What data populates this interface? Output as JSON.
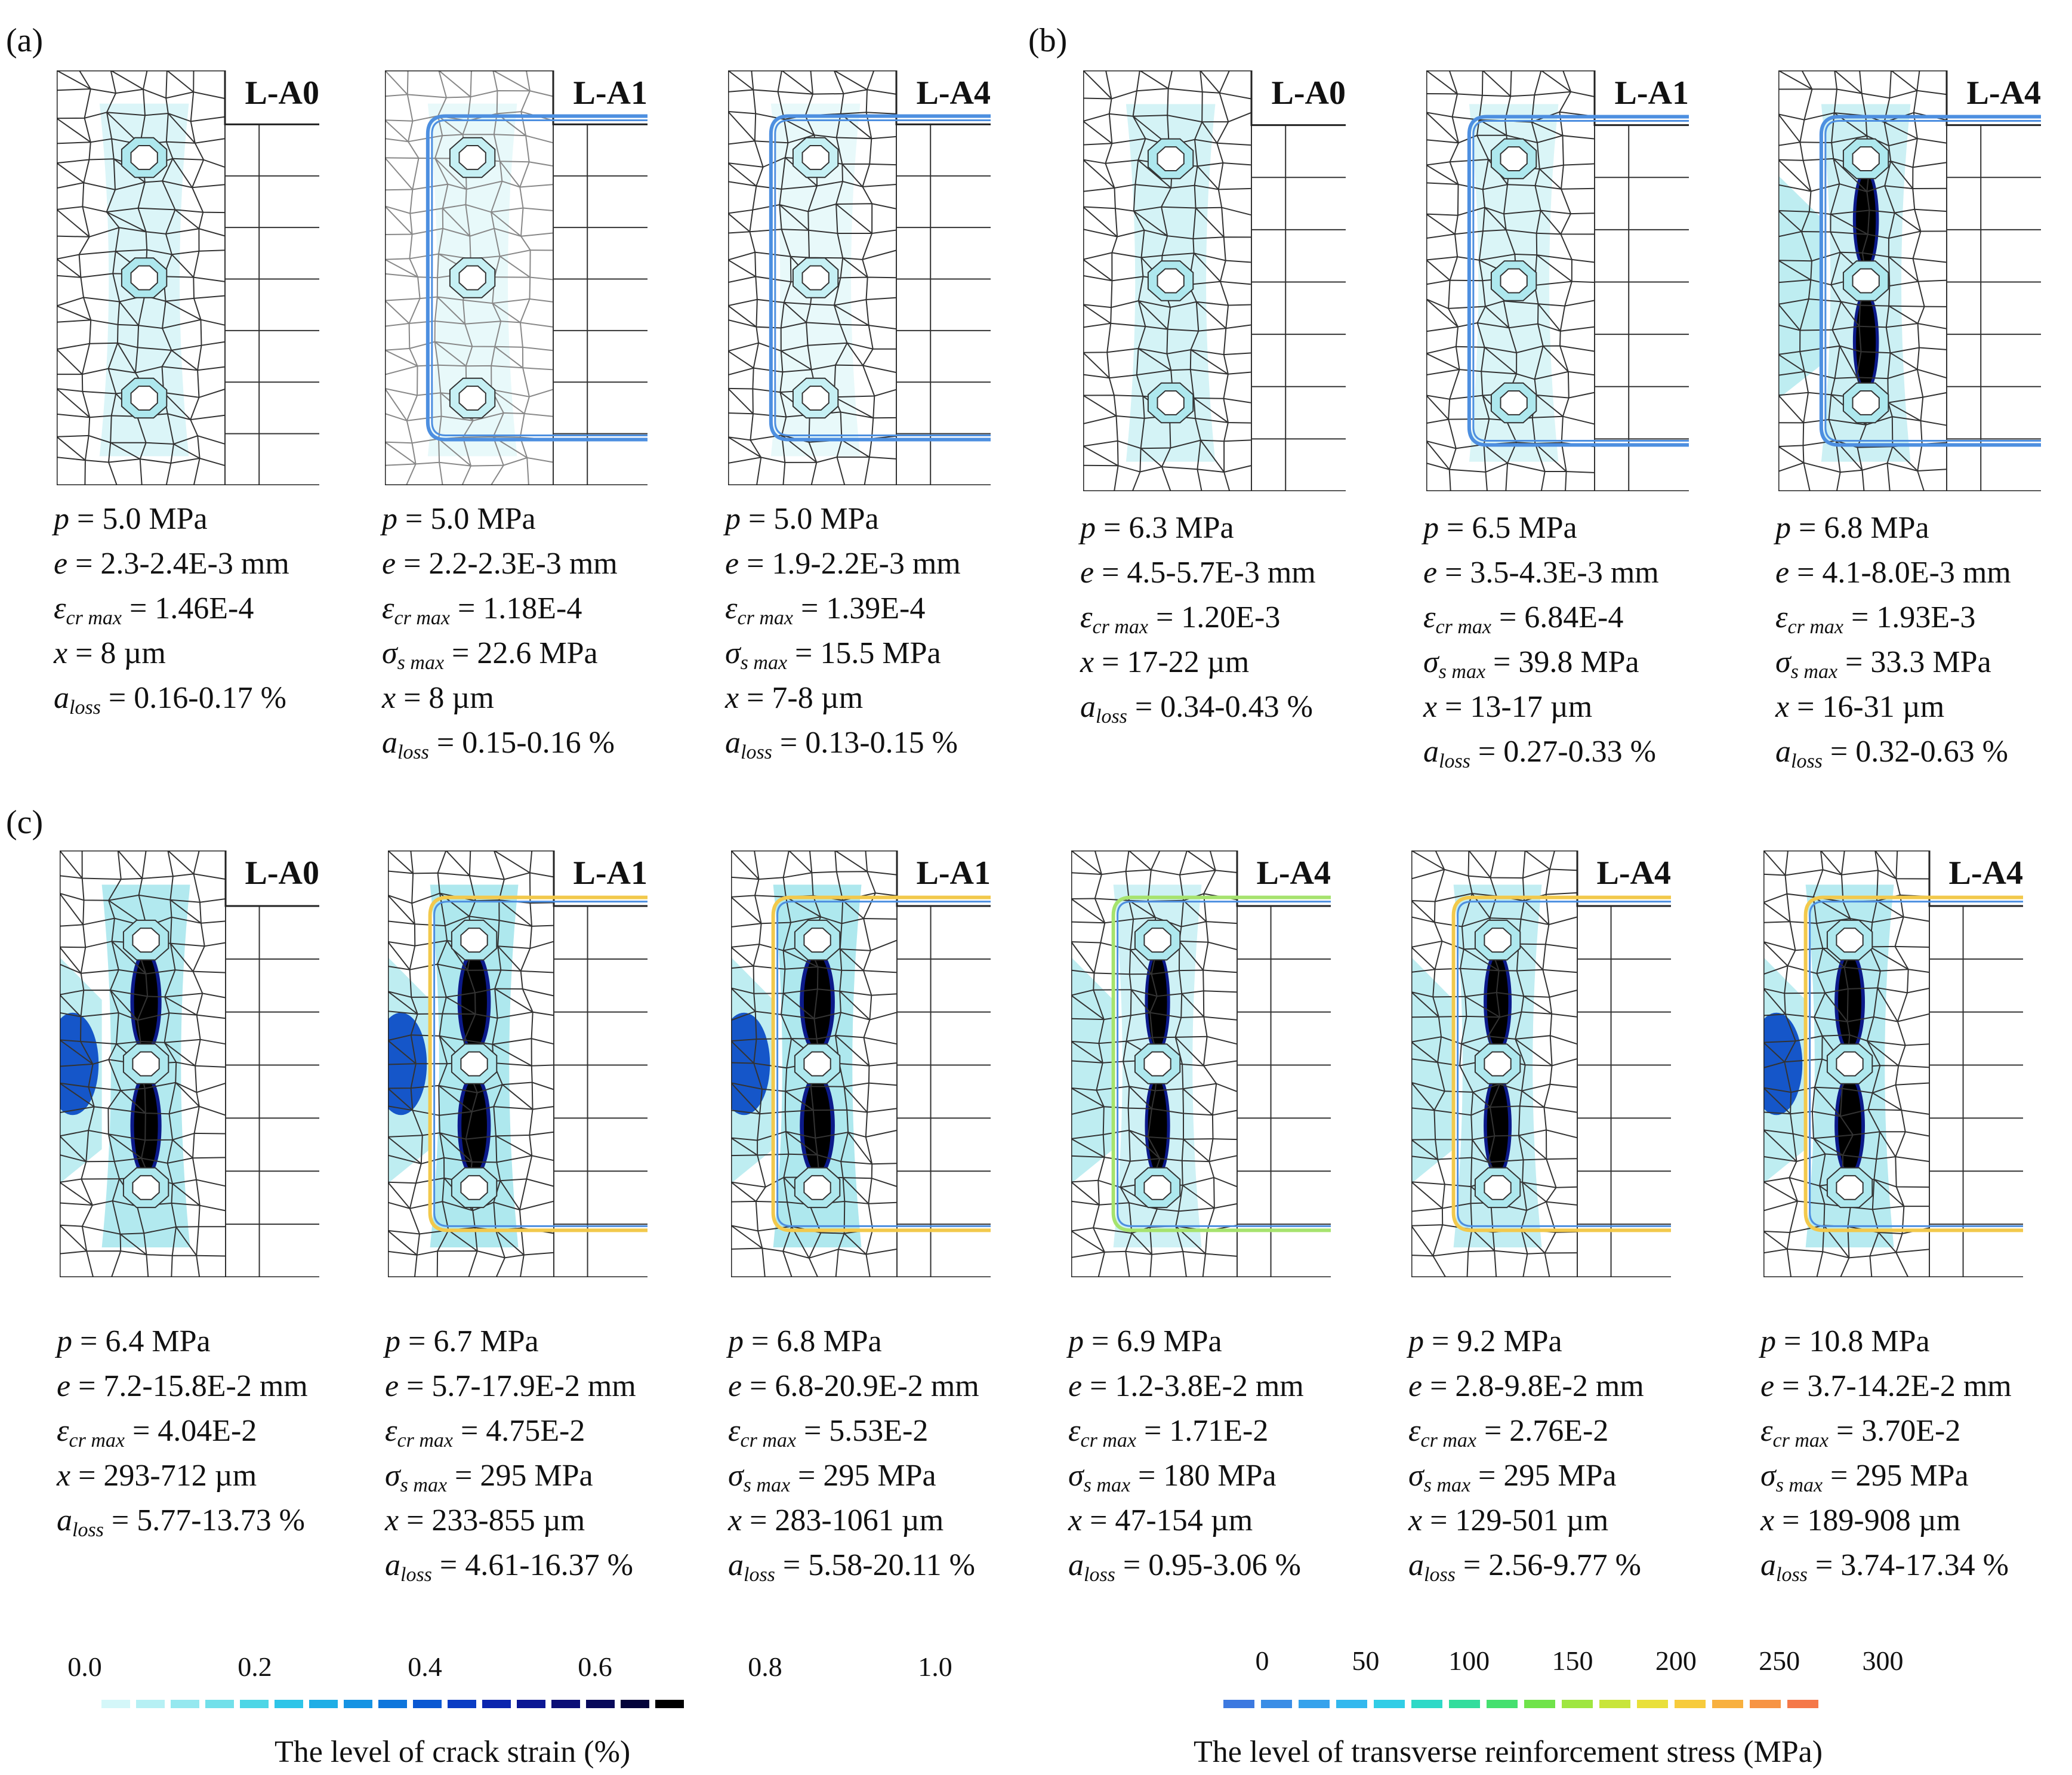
{
  "panel_labels": {
    "a": "(a)",
    "b": "(b)",
    "c": "(c)"
  },
  "symbols": {
    "p": "p",
    "e": "e",
    "eps": "ε",
    "eps_sub": "cr max",
    "sig": "σ",
    "sig_sub": "s max",
    "x": "x",
    "a": "a",
    "a_sub": "loss"
  },
  "panels_a": [
    {
      "title": "L-A0",
      "fill": "#aee8ee",
      "fill_level": 0.06,
      "bar": false,
      "stress_color": "",
      "lines": [
        {
          "k": "p",
          "v": " = 5.0 MPa"
        },
        {
          "k": "e",
          "v": " = 2.3-2.4E-3 mm"
        },
        {
          "k": "eps",
          "v": " = 1.46E-4"
        },
        {
          "k": "x",
          "v": " = 8 µm"
        },
        {
          "k": "a",
          "v": " = 0.16-0.17 %"
        }
      ]
    },
    {
      "title": "L-A1",
      "fill": "#c6f0f4",
      "fill_level": 0.04,
      "bar": true,
      "stress_color": "#4d8fe0",
      "lines": [
        {
          "k": "p",
          "v": " = 5.0 MPa"
        },
        {
          "k": "e",
          "v": " = 2.2-2.3E-3 mm"
        },
        {
          "k": "eps",
          "v": " = 1.18E-4"
        },
        {
          "k": "sig",
          "v": " = 22.6 MPa"
        },
        {
          "k": "x",
          "v": " = 8 µm"
        },
        {
          "k": "a",
          "v": " = 0.15-0.16 %"
        }
      ]
    },
    {
      "title": "L-A4",
      "fill": "#c6f0f4",
      "fill_level": 0.04,
      "bar": true,
      "stress_color": "#4d8fe0",
      "lines": [
        {
          "k": "p",
          "v": " = 5.0 MPa"
        },
        {
          "k": "e",
          "v": " = 1.9-2.2E-3 mm"
        },
        {
          "k": "eps",
          "v": " = 1.39E-4"
        },
        {
          "k": "sig",
          "v": " = 15.5 MPa"
        },
        {
          "k": "x",
          "v": " = 7-8 µm"
        },
        {
          "k": "a",
          "v": " = 0.13-0.15 %"
        }
      ]
    }
  ],
  "panels_b": [
    {
      "title": "L-A0",
      "fill": "#aee8ee",
      "fill_level": 0.12,
      "bar": false,
      "stress_color": "",
      "lines": [
        {
          "k": "p",
          "v": " = 6.3 MPa"
        },
        {
          "k": "e",
          "v": " = 4.5-5.7E-3 mm"
        },
        {
          "k": "eps",
          "v": " = 1.20E-3"
        },
        {
          "k": "x",
          "v": " = 17-22 µm"
        },
        {
          "k": "a",
          "v": " = 0.34-0.43 %"
        }
      ]
    },
    {
      "title": "L-A1",
      "fill": "#aee8ee",
      "fill_level": 0.07,
      "bar": true,
      "stress_color": "#4d8fe0",
      "lines": [
        {
          "k": "p",
          "v": " = 6.5 MPa"
        },
        {
          "k": "e",
          "v": " = 3.5-4.3E-3 mm"
        },
        {
          "k": "eps",
          "v": " = 6.84E-4"
        },
        {
          "k": "sig",
          "v": " = 39.8 MPa"
        },
        {
          "k": "x",
          "v": " = 13-17 µm"
        },
        {
          "k": "a",
          "v": " = 0.27-0.33 %"
        }
      ]
    },
    {
      "title": "L-A4",
      "fill": "#aee8ee",
      "fill_level": 0.19,
      "bar": true,
      "stress_color": "#4d8fe0",
      "lines": [
        {
          "k": "p",
          "v": " = 6.8 MPa"
        },
        {
          "k": "e",
          "v": " = 4.1-8.0E-3 mm"
        },
        {
          "k": "eps",
          "v": " = 1.93E-3"
        },
        {
          "k": "sig",
          "v": " = 33.3 MPa"
        },
        {
          "k": "x",
          "v": " = 16-31 µm"
        },
        {
          "k": "a",
          "v": " = 0.32-0.63 %"
        }
      ]
    }
  ],
  "panels_c": [
    {
      "title": "L-A0",
      "fill": "#aee8ee",
      "fill_level": 0.4,
      "bar": false,
      "stress_color": "",
      "lines": [
        {
          "k": "p",
          "v": " = 6.4 MPa"
        },
        {
          "k": "e",
          "v": " = 7.2-15.8E-2 mm"
        },
        {
          "k": "eps",
          "v": " = 4.04E-2"
        },
        {
          "k": "x",
          "v": " = 293-712 µm"
        },
        {
          "k": "a",
          "v": " = 5.77-13.73 %"
        }
      ]
    },
    {
      "title": "L-A1",
      "fill": "#aee8ee",
      "fill_level": 0.48,
      "bar": true,
      "stress_color": "#f2c94c",
      "lines": [
        {
          "k": "p",
          "v": " = 6.7 MPa"
        },
        {
          "k": "e",
          "v": " = 5.7-17.9E-2 mm"
        },
        {
          "k": "eps",
          "v": " = 4.75E-2"
        },
        {
          "k": "sig",
          "v": " = 295 MPa"
        },
        {
          "k": "x",
          "v": " = 233-855 µm"
        },
        {
          "k": "a",
          "v": " = 4.61-16.37 %"
        }
      ]
    },
    {
      "title": "L-A1",
      "fill": "#aee8ee",
      "fill_level": 0.55,
      "bar": true,
      "stress_color": "#f2c94c",
      "lines": [
        {
          "k": "p",
          "v": " = 6.8 MPa"
        },
        {
          "k": "e",
          "v": " = 6.8-20.9E-2 mm"
        },
        {
          "k": "eps",
          "v": " = 5.53E-2"
        },
        {
          "k": "sig",
          "v": " = 295 MPa"
        },
        {
          "k": "x",
          "v": " = 283-1061 µm"
        },
        {
          "k": "a",
          "v": " = 5.58-20.11 %"
        }
      ]
    },
    {
      "title": "L-A4",
      "fill": "#aee8ee",
      "fill_level": 0.17,
      "bar": true,
      "stress_color": "#a6e36e",
      "lines": [
        {
          "k": "p",
          "v": " = 6.9 MPa"
        },
        {
          "k": "e",
          "v": " = 1.2-3.8E-2 mm"
        },
        {
          "k": "eps",
          "v": " = 1.71E-2"
        },
        {
          "k": "sig",
          "v": " = 180 MPa"
        },
        {
          "k": "x",
          "v": " = 47-154 µm"
        },
        {
          "k": "a",
          "v": " = 0.95-3.06 %"
        }
      ]
    },
    {
      "title": "L-A4",
      "fill": "#aee8ee",
      "fill_level": 0.28,
      "bar": true,
      "stress_color": "#f2c94c",
      "lines": [
        {
          "k": "p",
          "v": " = 9.2 MPa"
        },
        {
          "k": "e",
          "v": " = 2.8-9.8E-2 mm"
        },
        {
          "k": "eps",
          "v": " = 2.76E-2"
        },
        {
          "k": "sig",
          "v": " = 295 MPa"
        },
        {
          "k": "x",
          "v": " = 129-501 µm"
        },
        {
          "k": "a",
          "v": " = 2.56-9.77 %"
        }
      ]
    },
    {
      "title": "L-A4",
      "fill": "#aee8ee",
      "fill_level": 0.37,
      "bar": true,
      "stress_color": "#f2c94c",
      "lines": [
        {
          "k": "p",
          "v": " = 10.8 MPa"
        },
        {
          "k": "e",
          "v": " = 3.7-14.2E-2 mm"
        },
        {
          "k": "eps",
          "v": " = 3.70E-2"
        },
        {
          "k": "sig",
          "v": " = 295 MPa"
        },
        {
          "k": "x",
          "v": " = 189-908 µm"
        },
        {
          "k": "a",
          "v": " = 3.74-17.34 %"
        }
      ]
    }
  ],
  "legend_crack": {
    "ticks": [
      "0.0",
      "0.2",
      "0.4",
      "0.6",
      "0.8",
      "1.0"
    ],
    "colors": [
      "#d4f7f9",
      "#b6f0f4",
      "#95e8ef",
      "#72e0ea",
      "#4dd6e6",
      "#2ec5e8",
      "#1faee6",
      "#1593e3",
      "#0e76dc",
      "#0a58d2",
      "#0a3cc4",
      "#0b25ae",
      "#0b1794",
      "#0b0e76",
      "#08095a",
      "#03033a",
      "#000000"
    ],
    "caption": "The level of crack strain (%)"
  },
  "legend_stress": {
    "ticks": [
      "0",
      "50",
      "100",
      "150",
      "200",
      "250",
      "300"
    ],
    "colors": [
      "#3c79e0",
      "#3a8de6",
      "#36a2ec",
      "#33b8ee",
      "#31cde6",
      "#2fd9c7",
      "#33dd9d",
      "#45e06f",
      "#70e34a",
      "#9fe640",
      "#c8e53a",
      "#e9e03a",
      "#f7cb3c",
      "#f8b03f",
      "#f79444",
      "#f57849"
    ],
    "caption": "The level of transverse reinforcement stress (MPa)"
  }
}
